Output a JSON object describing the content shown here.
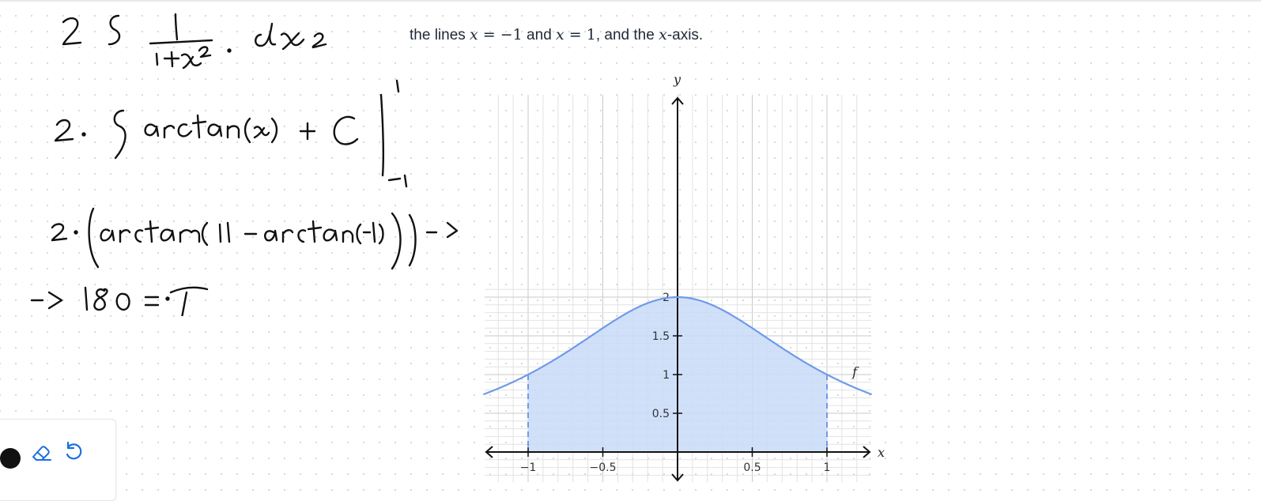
{
  "problem": {
    "text_prefix": "the lines ",
    "eq1_var": "x",
    "eq1_rhs": " = −1",
    "text_and": " and ",
    "eq2_var": "x",
    "eq2_rhs": " = 1",
    "text_suffix1": ", and the ",
    "axis_var": "x",
    "text_suffix2": "-axis."
  },
  "handwriting": {
    "line1": "2 ∫ 1/(1+x²) · dx",
    "line2": "2 · [ arctan(x) + C ] from −1 to 1",
    "line3": "2 · (arctan(1) − arctan(−1)) →",
    "line4": "→ 180 = π"
  },
  "graph": {
    "function_label": "f",
    "x_axis_label": "x",
    "y_axis_label": "y",
    "x_tick_labels": [
      "−1",
      "−0.5",
      "0.5",
      "1"
    ],
    "y_tick_labels": [
      "0.5",
      "1",
      "1.5",
      "2"
    ],
    "x_range": [
      -1.3,
      1.3
    ],
    "y_range": [
      0,
      2.1
    ],
    "shaded_region": [
      -1,
      1
    ],
    "curve_color": "#6f9be8",
    "fill_color": "#c9daf8"
  },
  "toolbar": {
    "pen_color": "#111111",
    "accent": "#1a6fe0",
    "icons": [
      "pen-color-icon",
      "eraser-icon",
      "undo-icon"
    ]
  }
}
